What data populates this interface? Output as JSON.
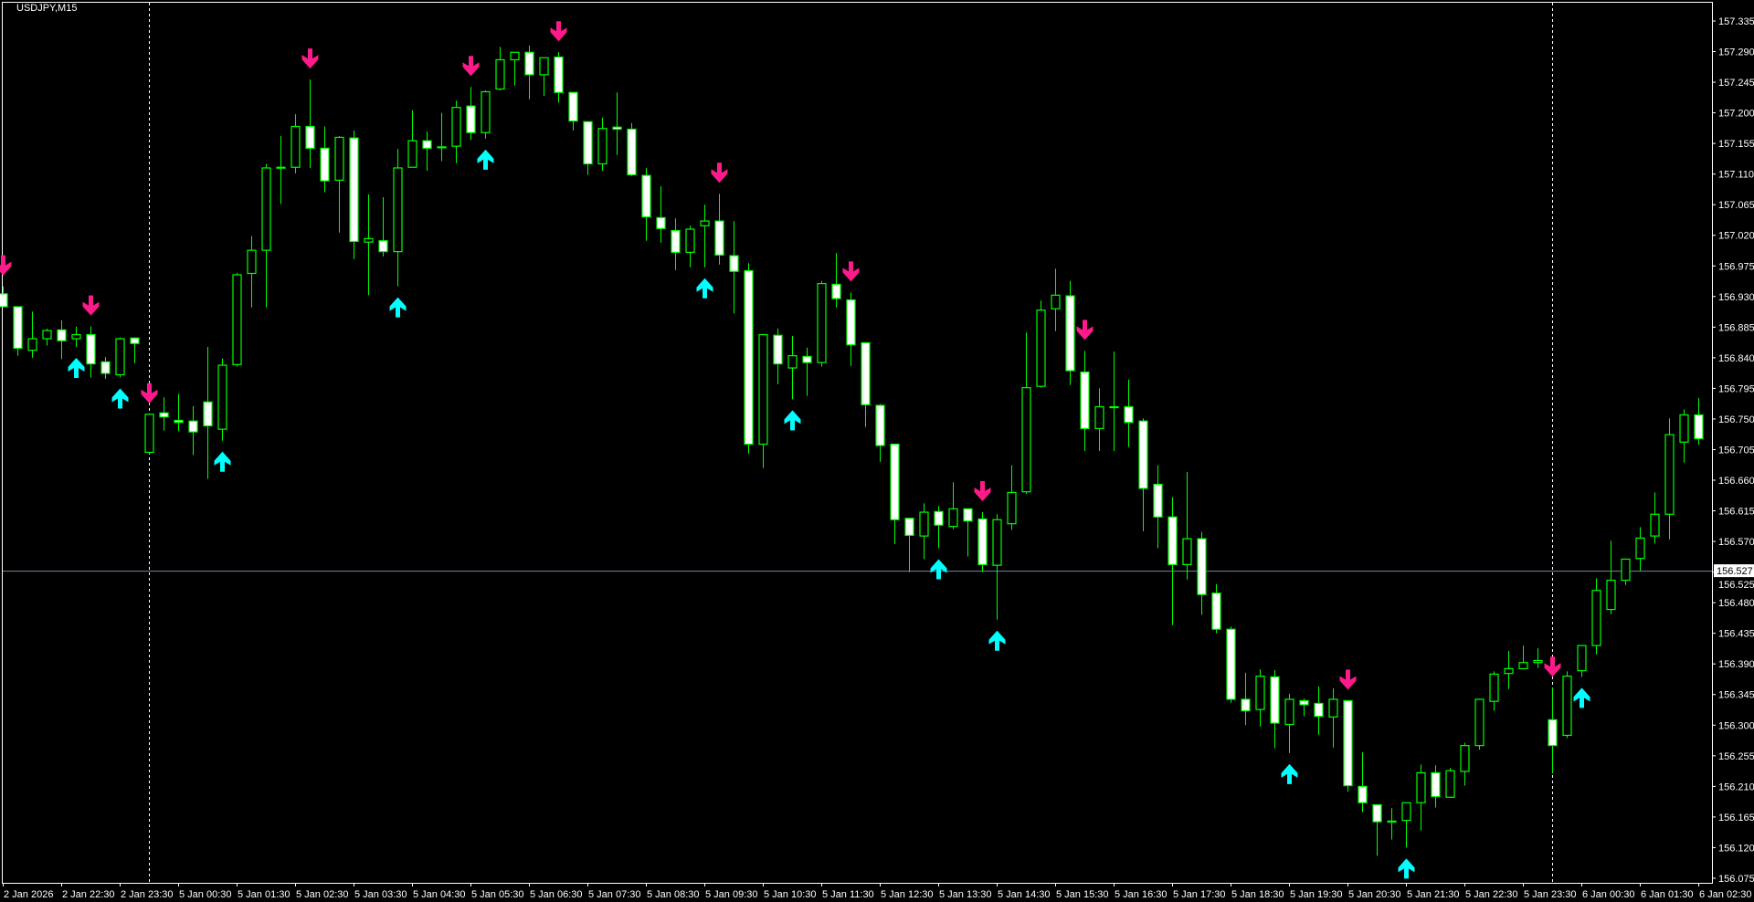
{
  "window": {
    "symbol_label": "USDJPY,M15"
  },
  "colors": {
    "background": "#000000",
    "axis": "#ffffff",
    "candle_outline": "#00ff00",
    "bear_body": "#ffffff",
    "bull_body": "#000000",
    "sell_arrow": "#ff1a8c",
    "buy_arrow": "#00ffff",
    "price_line": "#778899",
    "separator": "#ffffff"
  },
  "chart_data": {
    "type": "candlestick",
    "symbol": "USDJPY",
    "timeframe": "M15",
    "ylim": [
      156.075,
      157.335
    ],
    "y_ticks": [
      "157.335",
      "157.290",
      "157.245",
      "157.200",
      "157.155",
      "157.110",
      "157.065",
      "157.020",
      "156.975",
      "156.930",
      "156.885",
      "156.840",
      "156.795",
      "156.750",
      "156.705",
      "156.660",
      "156.615",
      "156.570",
      "156.525",
      "156.480",
      "156.435",
      "156.390",
      "156.345",
      "156.300",
      "156.255",
      "156.210",
      "156.165",
      "156.120",
      "156.075"
    ],
    "x_ticks": [
      "2 Jan 2026",
      "2 Jan 22:30",
      "2 Jan 23:30",
      "5 Jan 00:30",
      "5 Jan 01:30",
      "5 Jan 02:30",
      "5 Jan 03:30",
      "5 Jan 04:30",
      "5 Jan 05:30",
      "5 Jan 06:30",
      "5 Jan 07:30",
      "5 Jan 08:30",
      "5 Jan 09:30",
      "5 Jan 10:30",
      "5 Jan 11:30",
      "5 Jan 12:30",
      "5 Jan 13:30",
      "5 Jan 14:30",
      "5 Jan 15:30",
      "5 Jan 16:30",
      "5 Jan 17:30",
      "5 Jan 18:30",
      "5 Jan 19:30",
      "5 Jan 20:30",
      "5 Jan 21:30",
      "5 Jan 22:30",
      "5 Jan 23:30",
      "6 Jan 00:30",
      "6 Jan 01:30",
      "6 Jan 02:30"
    ],
    "price_line": {
      "value": 156.527,
      "label": "156.527"
    },
    "day_separators": [
      "5 Jan 00:00",
      "6 Jan 00:00"
    ],
    "candle_fields": [
      "time",
      "open",
      "high",
      "low",
      "close"
    ],
    "candles": [
      [
        "2 Jan 21:30",
        156.934,
        156.945,
        156.914,
        156.915
      ],
      [
        "2 Jan 21:45",
        156.915,
        156.915,
        156.843,
        156.854
      ],
      [
        "2 Jan 22:00",
        156.851,
        156.908,
        156.84,
        156.868
      ],
      [
        "2 Jan 22:15",
        156.868,
        156.883,
        156.858,
        156.88
      ],
      [
        "2 Jan 22:30",
        156.881,
        156.895,
        156.838,
        156.865
      ],
      [
        "2 Jan 22:45",
        156.868,
        156.886,
        156.856,
        156.874
      ],
      [
        "2 Jan 23:00",
        156.874,
        156.886,
        156.811,
        156.831
      ],
      [
        "2 Jan 23:15",
        156.834,
        156.841,
        156.809,
        156.817
      ],
      [
        "2 Jan 23:30",
        156.815,
        156.87,
        156.811,
        156.868
      ],
      [
        "2 Jan 23:45",
        156.869,
        156.87,
        156.832,
        156.861
      ],
      [
        "5 Jan 00:00",
        156.701,
        156.757,
        156.699,
        156.757
      ],
      [
        "5 Jan 00:15",
        156.759,
        156.782,
        156.733,
        156.753
      ],
      [
        "5 Jan 00:30",
        156.748,
        156.787,
        156.732,
        156.745
      ],
      [
        "5 Jan 00:45",
        156.747,
        156.769,
        156.697,
        156.731
      ],
      [
        "5 Jan 01:00",
        156.775,
        156.856,
        156.662,
        156.74
      ],
      [
        "5 Jan 01:15",
        156.735,
        156.839,
        156.718,
        156.829
      ],
      [
        "5 Jan 01:30",
        156.83,
        156.965,
        156.827,
        156.962
      ],
      [
        "5 Jan 01:45",
        156.964,
        157.019,
        156.914,
        156.998
      ],
      [
        "5 Jan 02:00",
        156.998,
        157.125,
        156.914,
        157.119
      ],
      [
        "5 Jan 02:15",
        157.12,
        157.166,
        157.066,
        157.12
      ],
      [
        "5 Jan 02:30",
        157.12,
        157.198,
        157.111,
        157.18
      ],
      [
        "5 Jan 02:45",
        157.18,
        157.249,
        157.119,
        157.148
      ],
      [
        "5 Jan 03:00",
        157.148,
        157.18,
        157.083,
        157.1
      ],
      [
        "5 Jan 03:15",
        157.101,
        157.166,
        157.024,
        157.164
      ],
      [
        "5 Jan 03:30",
        157.163,
        157.174,
        156.985,
        157.011
      ],
      [
        "5 Jan 03:45",
        157.01,
        157.08,
        156.932,
        157.015
      ],
      [
        "5 Jan 04:00",
        157.012,
        157.076,
        156.989,
        156.996
      ],
      [
        "5 Jan 04:15",
        156.996,
        157.147,
        156.945,
        157.119
      ],
      [
        "5 Jan 04:30",
        157.12,
        157.204,
        157.12,
        157.159
      ],
      [
        "5 Jan 04:45",
        157.159,
        157.173,
        157.115,
        157.148
      ],
      [
        "5 Jan 05:00",
        157.15,
        157.2,
        157.129,
        157.15
      ],
      [
        "5 Jan 05:15",
        157.151,
        157.218,
        157.126,
        157.208
      ],
      [
        "5 Jan 05:30",
        157.21,
        157.238,
        157.16,
        157.171
      ],
      [
        "5 Jan 05:45",
        157.171,
        157.233,
        157.162,
        157.231
      ],
      [
        "5 Jan 06:00",
        157.235,
        157.297,
        157.233,
        157.278
      ],
      [
        "5 Jan 06:15",
        157.278,
        157.289,
        157.24,
        157.289
      ],
      [
        "5 Jan 06:30",
        157.289,
        157.299,
        157.22,
        157.256
      ],
      [
        "5 Jan 06:45",
        157.256,
        157.281,
        157.225,
        157.281
      ],
      [
        "5 Jan 07:00",
        157.282,
        157.289,
        157.215,
        157.23
      ],
      [
        "5 Jan 07:15",
        157.23,
        157.23,
        157.174,
        157.188
      ],
      [
        "5 Jan 07:30",
        157.187,
        157.187,
        157.109,
        157.125
      ],
      [
        "5 Jan 07:45",
        157.125,
        157.193,
        157.115,
        157.177
      ],
      [
        "5 Jan 08:00",
        157.179,
        157.23,
        157.138,
        157.176
      ],
      [
        "5 Jan 08:15",
        157.176,
        157.185,
        157.107,
        157.109
      ],
      [
        "5 Jan 08:30",
        157.108,
        157.119,
        157.012,
        157.047
      ],
      [
        "5 Jan 08:45",
        157.046,
        157.092,
        157.009,
        157.03
      ],
      [
        "5 Jan 09:00",
        157.027,
        157.045,
        156.969,
        156.995
      ],
      [
        "5 Jan 09:15",
        156.995,
        157.034,
        156.973,
        157.029
      ],
      [
        "5 Jan 09:30",
        157.034,
        157.065,
        156.973,
        157.041
      ],
      [
        "5 Jan 09:45",
        157.041,
        157.081,
        156.977,
        156.991
      ],
      [
        "5 Jan 10:00",
        156.99,
        157.041,
        156.905,
        156.967
      ],
      [
        "5 Jan 10:15",
        156.968,
        156.979,
        156.699,
        156.713
      ],
      [
        "5 Jan 10:30",
        156.713,
        156.874,
        156.678,
        156.874
      ],
      [
        "5 Jan 10:45",
        156.873,
        156.883,
        156.801,
        156.831
      ],
      [
        "5 Jan 11:00",
        156.825,
        156.872,
        156.779,
        156.843
      ],
      [
        "5 Jan 11:15",
        156.842,
        156.855,
        156.784,
        156.833
      ],
      [
        "5 Jan 11:30",
        156.833,
        156.953,
        156.827,
        156.949
      ],
      [
        "5 Jan 11:45",
        156.948,
        156.994,
        156.914,
        156.927
      ],
      [
        "5 Jan 12:00",
        156.925,
        156.936,
        156.828,
        156.859
      ],
      [
        "5 Jan 12:15",
        156.862,
        156.863,
        156.738,
        156.771
      ],
      [
        "5 Jan 12:30",
        156.77,
        156.772,
        156.687,
        156.711
      ],
      [
        "5 Jan 12:45",
        156.713,
        156.713,
        156.566,
        156.602
      ],
      [
        "5 Jan 13:00",
        156.604,
        156.604,
        156.525,
        156.579
      ],
      [
        "5 Jan 13:15",
        156.578,
        156.626,
        156.544,
        156.613
      ],
      [
        "5 Jan 13:30",
        156.614,
        156.622,
        156.56,
        156.594
      ],
      [
        "5 Jan 13:45",
        156.592,
        156.657,
        156.588,
        156.618
      ],
      [
        "5 Jan 14:00",
        156.618,
        156.618,
        156.548,
        156.6
      ],
      [
        "5 Jan 14:15",
        156.603,
        156.613,
        156.525,
        156.536
      ],
      [
        "5 Jan 14:30",
        156.535,
        156.61,
        156.455,
        156.602
      ],
      [
        "5 Jan 14:45",
        156.596,
        156.682,
        156.587,
        156.642
      ],
      [
        "5 Jan 15:00",
        156.643,
        156.877,
        156.64,
        156.796
      ],
      [
        "5 Jan 15:15",
        156.798,
        156.924,
        156.796,
        156.91
      ],
      [
        "5 Jan 15:30",
        156.912,
        156.971,
        156.879,
        156.932
      ],
      [
        "5 Jan 15:45",
        156.931,
        156.953,
        156.8,
        156.821
      ],
      [
        "5 Jan 16:00",
        156.819,
        156.85,
        156.703,
        156.736
      ],
      [
        "5 Jan 16:15",
        156.736,
        156.795,
        156.703,
        156.768
      ],
      [
        "5 Jan 16:30",
        156.768,
        156.849,
        156.703,
        156.768
      ],
      [
        "5 Jan 16:45",
        156.768,
        156.808,
        156.709,
        156.745
      ],
      [
        "5 Jan 17:00",
        156.747,
        156.751,
        156.585,
        156.648
      ],
      [
        "5 Jan 17:15",
        156.654,
        156.682,
        156.56,
        156.606
      ],
      [
        "5 Jan 17:30",
        156.606,
        156.635,
        156.447,
        156.536
      ],
      [
        "5 Jan 17:45",
        156.536,
        156.672,
        156.514,
        156.574
      ],
      [
        "5 Jan 18:00",
        156.574,
        156.584,
        156.462,
        156.492
      ],
      [
        "5 Jan 18:15",
        156.494,
        156.507,
        156.435,
        156.441
      ],
      [
        "5 Jan 18:30",
        156.441,
        156.445,
        156.333,
        156.338
      ],
      [
        "5 Jan 18:45",
        156.338,
        156.377,
        156.3,
        156.321
      ],
      [
        "5 Jan 19:00",
        156.323,
        156.382,
        156.298,
        156.372
      ],
      [
        "5 Jan 19:15",
        156.371,
        156.381,
        156.266,
        156.303
      ],
      [
        "5 Jan 19:30",
        156.301,
        156.346,
        156.259,
        156.338
      ],
      [
        "5 Jan 19:45",
        156.336,
        156.339,
        156.313,
        156.33
      ],
      [
        "5 Jan 20:00",
        156.332,
        156.357,
        156.286,
        156.313
      ],
      [
        "5 Jan 20:15",
        156.312,
        156.354,
        156.267,
        156.338
      ],
      [
        "5 Jan 20:30",
        156.336,
        156.336,
        156.202,
        156.211
      ],
      [
        "5 Jan 20:45",
        156.21,
        156.26,
        156.172,
        156.186
      ],
      [
        "5 Jan 21:00",
        156.183,
        156.183,
        156.108,
        156.158
      ],
      [
        "5 Jan 21:15",
        156.159,
        156.178,
        156.132,
        156.159
      ],
      [
        "5 Jan 21:30",
        156.16,
        156.186,
        156.12,
        156.186
      ],
      [
        "5 Jan 21:45",
        156.186,
        156.242,
        156.145,
        156.23
      ],
      [
        "5 Jan 22:00",
        156.23,
        156.241,
        156.179,
        156.195
      ],
      [
        "5 Jan 22:15",
        156.194,
        156.237,
        156.193,
        156.233
      ],
      [
        "5 Jan 22:30",
        156.232,
        156.274,
        156.211,
        156.27
      ],
      [
        "5 Jan 22:45",
        156.27,
        156.339,
        156.264,
        156.338
      ],
      [
        "5 Jan 23:00",
        156.335,
        156.379,
        156.321,
        156.375
      ],
      [
        "5 Jan 23:15",
        156.376,
        156.409,
        156.353,
        156.383
      ],
      [
        "5 Jan 23:30",
        156.383,
        156.417,
        156.382,
        156.392
      ],
      [
        "5 Jan 23:45",
        156.392,
        156.413,
        156.384,
        156.395
      ],
      [
        "6 Jan 00:00",
        156.308,
        156.355,
        156.229,
        156.27
      ],
      [
        "6 Jan 00:15",
        156.285,
        156.379,
        156.281,
        156.372
      ],
      [
        "6 Jan 00:30",
        156.38,
        156.418,
        156.371,
        156.417
      ],
      [
        "6 Jan 00:45",
        156.417,
        156.516,
        156.404,
        156.498
      ],
      [
        "6 Jan 01:00",
        156.47,
        156.571,
        156.463,
        156.513
      ],
      [
        "6 Jan 01:15",
        156.513,
        156.545,
        156.506,
        156.544
      ],
      [
        "6 Jan 01:30",
        156.545,
        156.591,
        156.527,
        156.575
      ],
      [
        "6 Jan 01:45",
        156.578,
        156.642,
        156.567,
        156.61
      ],
      [
        "6 Jan 02:00",
        156.61,
        156.751,
        156.573,
        156.727
      ],
      [
        "6 Jan 02:15",
        156.716,
        156.764,
        156.686,
        156.756
      ],
      [
        "6 Jan 02:30",
        156.756,
        156.781,
        156.712,
        156.721
      ]
    ],
    "sell_arrows": [
      "2 Jan 21:30",
      "2 Jan 23:00",
      "5 Jan 00:00",
      "5 Jan 02:45",
      "5 Jan 05:30",
      "5 Jan 07:00",
      "5 Jan 09:45",
      "5 Jan 12:00",
      "5 Jan 14:15",
      "5 Jan 16:00",
      "5 Jan 20:30",
      "6 Jan 00:00"
    ],
    "buy_arrows": [
      "2 Jan 22:45",
      "2 Jan 23:30",
      "5 Jan 01:15",
      "5 Jan 04:15",
      "5 Jan 05:45",
      "5 Jan 09:30",
      "5 Jan 11:00",
      "5 Jan 13:30",
      "5 Jan 14:30",
      "5 Jan 19:30",
      "5 Jan 21:30",
      "6 Jan 00:30"
    ]
  }
}
